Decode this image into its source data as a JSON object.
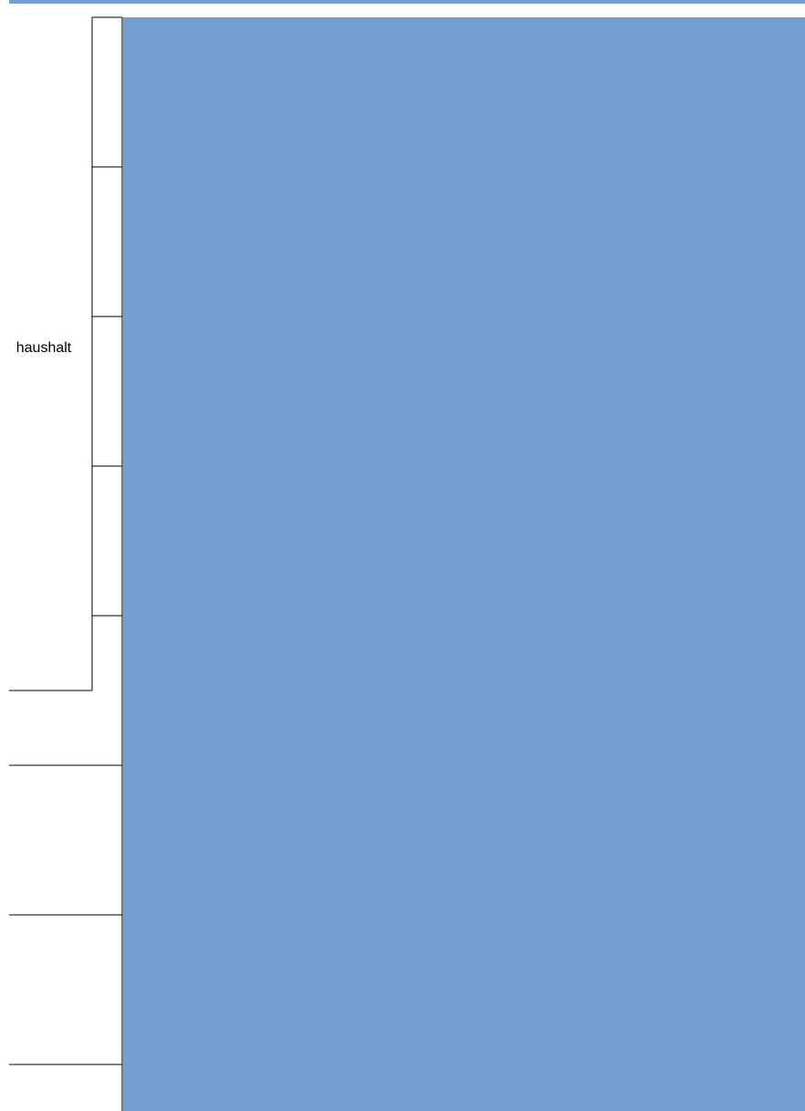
{
  "chart_data": {
    "type": "bar",
    "orientation": "horizontal",
    "group_labels": [
      "haushalt"
    ],
    "categories": [
      "",
      "",
      "",
      "",
      "",
      "",
      "",
      ""
    ],
    "series": [
      {
        "values": [
          1,
          1,
          1,
          1,
          1,
          1,
          1,
          1
        ]
      }
    ],
    "title": "",
    "xlabel": "",
    "ylabel": "",
    "grid": false,
    "legend": "none",
    "colors": {
      "bar": "#729fcf",
      "bar_edge": "#7a7a7a",
      "axis": "#000000",
      "top_band": "#729fcf"
    }
  }
}
